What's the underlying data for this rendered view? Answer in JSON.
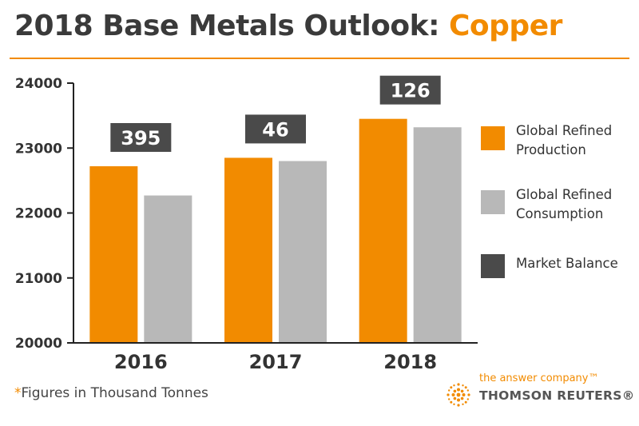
{
  "header": {
    "title_prefix": "2018 Base Metals Outlook: ",
    "title_accent": "Copper"
  },
  "colors": {
    "production": "#f28b00",
    "consumption": "#b8b8b8",
    "balance": "#4a4a4a",
    "axis": "#222222"
  },
  "chart_data": {
    "type": "bar",
    "title": "2018 Base Metals Outlook: Copper",
    "categories": [
      "2016",
      "2017",
      "2018"
    ],
    "series": [
      {
        "name": "Global Refined Production",
        "values": [
          22720,
          22850,
          23450
        ]
      },
      {
        "name": "Global Refined Consumption",
        "values": [
          22270,
          22800,
          23320
        ]
      }
    ],
    "market_balance": {
      "name": "Market Balance",
      "values": [
        395,
        46,
        126
      ],
      "labels": [
        "395",
        "46",
        "126"
      ]
    },
    "ylim": [
      20000,
      24000
    ],
    "yticks": [
      20000,
      21000,
      22000,
      23000,
      24000
    ],
    "ytick_labels": [
      "20000",
      "21000",
      "22000",
      "23000",
      "24000"
    ],
    "xlabel": "",
    "ylabel": "",
    "legend_position": "right",
    "grid": false
  },
  "legend": {
    "items": [
      {
        "label": "Global Refined Production"
      },
      {
        "label": "Global Refined Consumption"
      },
      {
        "label": "Market Balance"
      }
    ]
  },
  "footnote": {
    "star": "*",
    "text": "Figures in Thousand Tonnes"
  },
  "brand": {
    "tagline": "the answer company™",
    "name": "THOMSON REUTERS®",
    "logo_icon": "thomson-reuters-logo-icon"
  }
}
